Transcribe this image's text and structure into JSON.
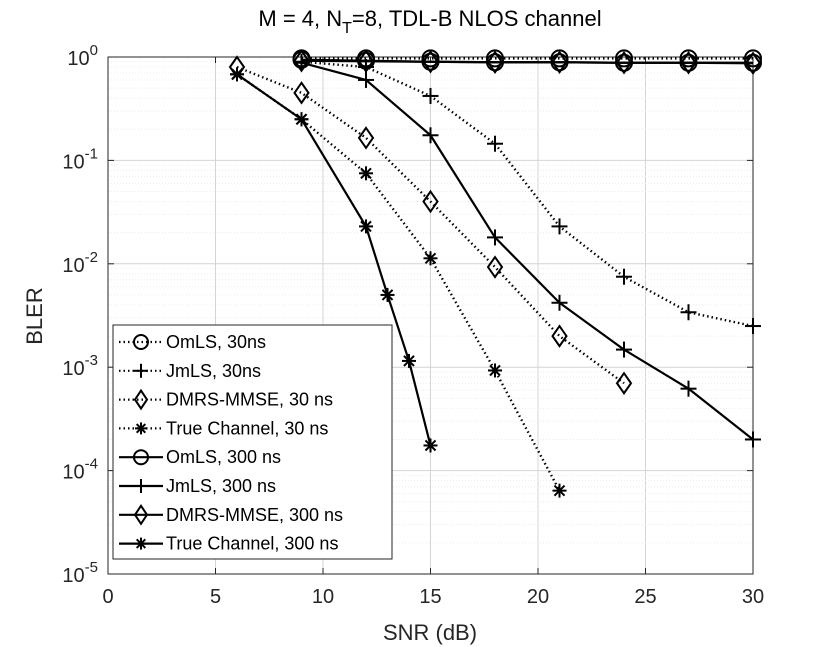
{
  "chart_data": {
    "type": "line",
    "title": {
      "prefix": "M = 4, N",
      "sub": "T",
      "suffix": "=8, TDL-B NLOS channel"
    },
    "xlabel": "SNR (dB)",
    "ylabel": "BLER",
    "xlim": [
      0,
      30
    ],
    "ylim": [
      1e-05,
      1
    ],
    "yscale": "log",
    "grid": true,
    "legend_location": "bottom-left",
    "x_ticks": [
      0,
      5,
      10,
      15,
      20,
      25,
      30
    ],
    "x_tick_labels": [
      "0",
      "5",
      "10",
      "15",
      "20",
      "25",
      "30"
    ],
    "y_ticks": [
      {
        "value": 1,
        "base": "10",
        "exp": "0"
      },
      {
        "value": 0.1,
        "base": "10",
        "exp": "-1"
      },
      {
        "value": 0.01,
        "base": "10",
        "exp": "-2"
      },
      {
        "value": 0.001,
        "base": "10",
        "exp": "-3"
      },
      {
        "value": 0.0001,
        "base": "10",
        "exp": "-4"
      },
      {
        "value": 1e-05,
        "base": "10",
        "exp": "-5"
      }
    ],
    "series": [
      {
        "name": "OmLS, 30ns",
        "marker": "circle",
        "line": "dotted",
        "x": [
          9,
          12,
          15,
          18,
          21,
          24,
          27,
          30
        ],
        "y": [
          0.97,
          0.97,
          0.97,
          0.97,
          0.97,
          0.97,
          0.97,
          0.97
        ]
      },
      {
        "name": "JmLS, 30ns",
        "marker": "plus",
        "line": "dotted",
        "x": [
          9,
          12,
          15,
          18,
          21,
          24,
          27,
          30
        ],
        "y": [
          0.9,
          0.8,
          0.42,
          0.145,
          0.023,
          0.0075,
          0.0034,
          0.0025
        ]
      },
      {
        "name": "DMRS-MMSE, 30 ns",
        "marker": "diamond",
        "line": "dotted",
        "x": [
          6,
          9,
          12,
          15,
          18,
          21,
          24
        ],
        "y": [
          0.8,
          0.45,
          0.165,
          0.04,
          0.0093,
          0.002,
          0.0007
        ]
      },
      {
        "name": "True Channel, 30 ns",
        "marker": "asterisk",
        "line": "dotted",
        "x": [
          6,
          9,
          12,
          15,
          18,
          21
        ],
        "y": [
          0.68,
          0.25,
          0.075,
          0.0113,
          0.00093,
          6.4e-05
        ]
      },
      {
        "name": "OmLS, 300 ns",
        "marker": "circle",
        "line": "solid",
        "x": [
          9,
          12,
          15,
          18,
          21,
          24,
          27,
          30
        ],
        "y": [
          0.94,
          0.92,
          0.9,
          0.89,
          0.89,
          0.88,
          0.88,
          0.88
        ]
      },
      {
        "name": "JmLS, 300 ns",
        "marker": "plus",
        "line": "solid",
        "x": [
          9,
          12,
          15,
          18,
          21,
          24,
          27,
          30
        ],
        "y": [
          0.88,
          0.6,
          0.175,
          0.018,
          0.0042,
          0.00148,
          0.00062,
          0.0002
        ]
      },
      {
        "name": "DMRS-MMSE, 300 ns",
        "marker": "diamond",
        "line": "solid",
        "x": [
          9,
          12,
          15,
          18,
          21,
          24,
          27,
          30
        ],
        "y": [
          0.92,
          0.91,
          0.9,
          0.89,
          0.89,
          0.88,
          0.88,
          0.87
        ]
      },
      {
        "name": "True Channel, 300 ns",
        "marker": "asterisk",
        "line": "solid",
        "x": [
          6,
          9,
          12,
          13,
          14,
          15
        ],
        "y": [
          0.68,
          0.25,
          0.023,
          0.005,
          0.00115,
          0.000175
        ]
      }
    ]
  }
}
